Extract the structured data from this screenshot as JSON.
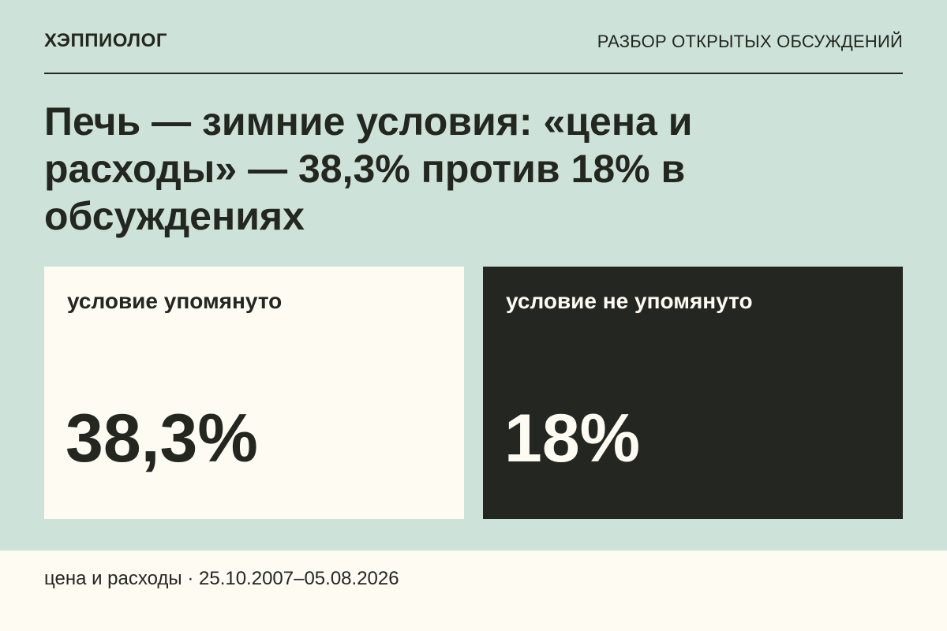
{
  "header": {
    "brand": "ХЭППИОЛОГ",
    "section": "РАЗБОР ОТКРЫТЫХ ОБСУЖДЕНИЙ"
  },
  "headline": "Печь — зимние условия: «цена и расходы» — 38,3% против 18% в обсуждениях",
  "cards": [
    {
      "label": "условие упомянуто",
      "value": "38,3%",
      "percent": 38.3
    },
    {
      "label": "условие не упомянуто",
      "value": "18%",
      "percent": 18
    }
  ],
  "footer": {
    "text": "цена и расходы · 25.10.2007–05.08.2026"
  },
  "colors": {
    "background": "#cde3da",
    "light_card": "#fefbf3",
    "dark_card": "#242721",
    "text": "#23271f"
  }
}
